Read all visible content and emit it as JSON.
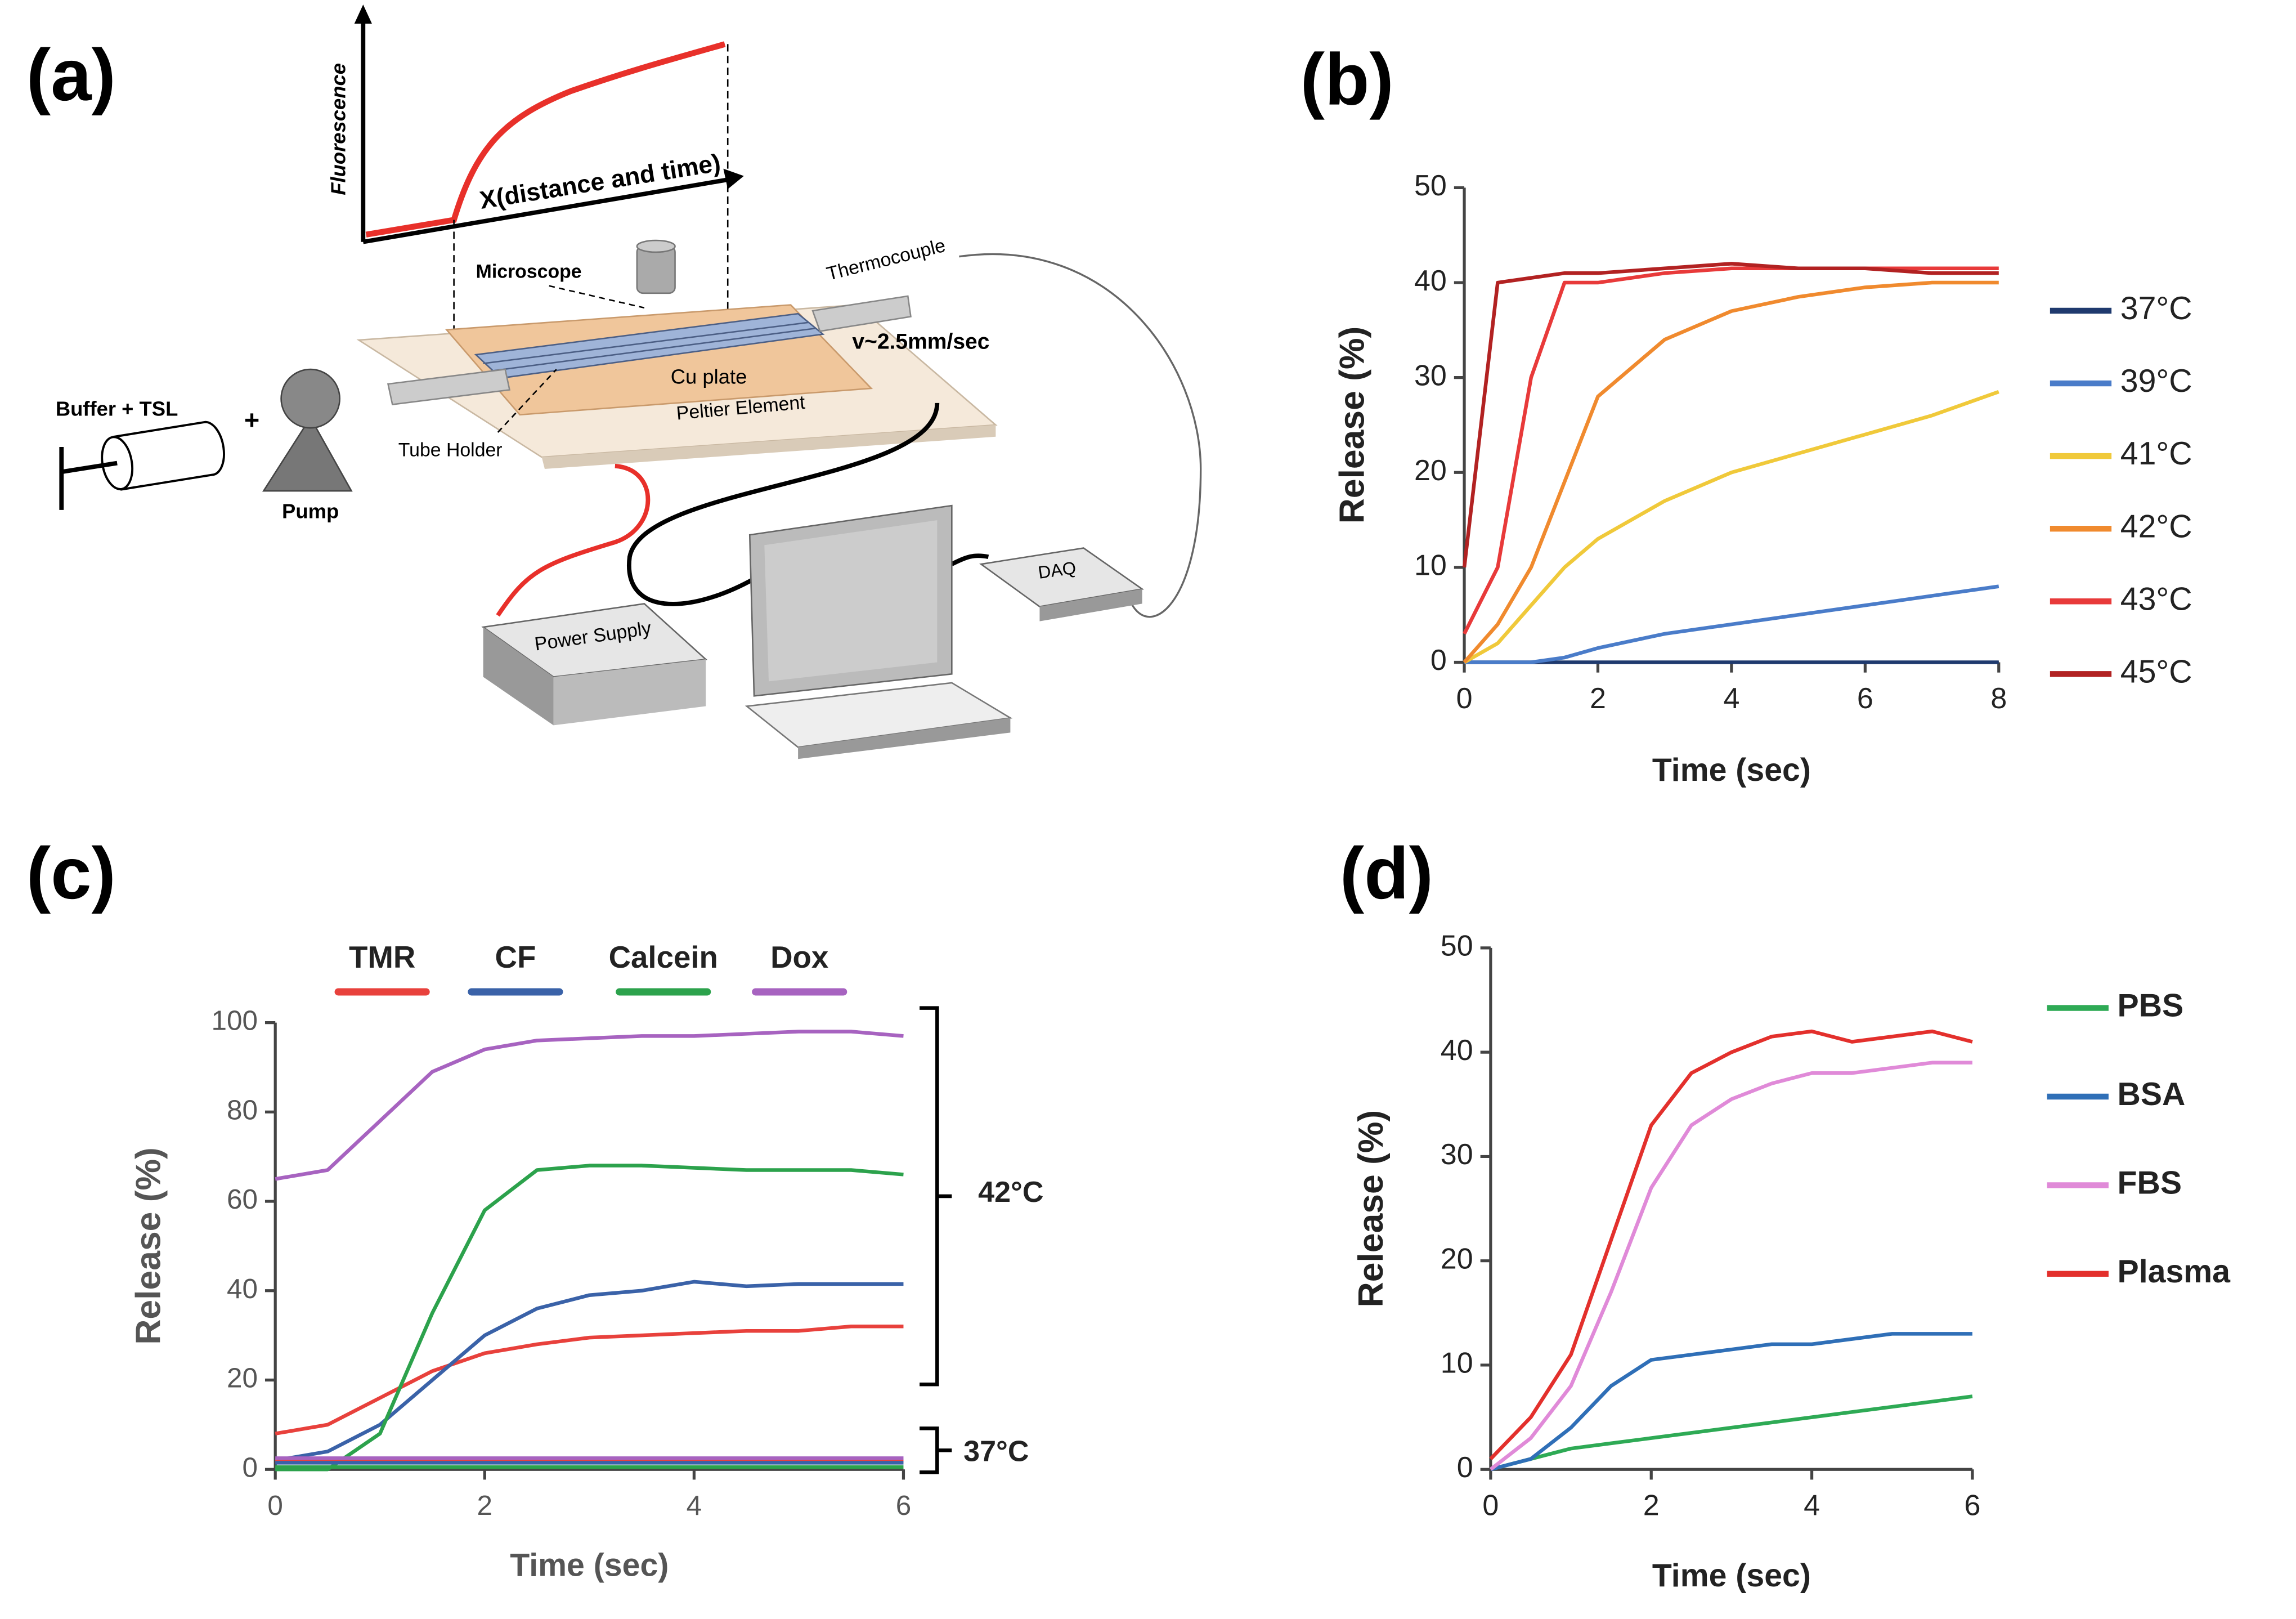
{
  "diagram": {
    "label": "(a)",
    "y_axis_label": "Fluorescence",
    "x_axis_label": "X(distance and time)",
    "microscope": "Microscope",
    "thermocouple": "Thermocouple",
    "velocity": "v~2.5mm/sec",
    "cu_plate": "Cu plate",
    "peltier": "Peltier Element",
    "tube_holder": "Tube Holder",
    "buffer": "Buffer + TSL",
    "plus": "+",
    "pump": "Pump",
    "power_supply": "Power Supply",
    "daq": "DAQ"
  },
  "chart_data": [
    {
      "type": "line",
      "label": "(b)",
      "x_label": "Time (sec)",
      "y_label": "Release (%)",
      "xlim": [
        0,
        8
      ],
      "ylim": [
        0,
        50
      ],
      "xticks": [
        0,
        2,
        4,
        6,
        8
      ],
      "yticks": [
        0,
        10,
        20,
        30,
        40,
        50
      ],
      "legend": "right",
      "x": [
        0,
        0.5,
        1,
        1.5,
        2,
        3,
        4,
        5,
        6,
        7,
        8
      ],
      "series": [
        {
          "name": "37°C",
          "color": "#1f3a6e",
          "values": [
            0,
            0,
            0,
            0,
            0,
            0,
            0,
            0,
            0,
            0,
            0
          ]
        },
        {
          "name": "39°C",
          "color": "#4a7cc9",
          "values": [
            0,
            0,
            0,
            0.5,
            1.5,
            3,
            4,
            5,
            6,
            7,
            8
          ]
        },
        {
          "name": "41°C",
          "color": "#f0c93a",
          "values": [
            0,
            2,
            6,
            10,
            13,
            17,
            20,
            22,
            24,
            26,
            28.5
          ]
        },
        {
          "name": "42°C",
          "color": "#f08a2e",
          "values": [
            0,
            4,
            10,
            19,
            28,
            34,
            37,
            38.5,
            39.5,
            40,
            40
          ]
        },
        {
          "name": "43°C",
          "color": "#e83a3a",
          "values": [
            3,
            10,
            30,
            40,
            40,
            41,
            41.5,
            41.5,
            41.5,
            41.5,
            41.5
          ]
        },
        {
          "name": "45°C",
          "color": "#b22222",
          "values": [
            10,
            40,
            40.5,
            41,
            41,
            41.5,
            42,
            41.5,
            41.5,
            41,
            41
          ]
        }
      ]
    },
    {
      "type": "line",
      "label": "(c)",
      "x_label": "Time (sec)",
      "y_label": "Release (%)",
      "xlim": [
        0,
        6
      ],
      "ylim": [
        0,
        100
      ],
      "xticks": [
        0,
        2,
        4,
        6
      ],
      "yticks": [
        0,
        20,
        40,
        60,
        80,
        100
      ],
      "legend": "top",
      "annotations": [
        "42°C",
        "37°C"
      ],
      "x": [
        0,
        0.5,
        1,
        1.5,
        2,
        2.5,
        3,
        3.5,
        4,
        4.5,
        5,
        5.5,
        6
      ],
      "series": [
        {
          "name": "TMR",
          "color": "#e8413c",
          "values": [
            8,
            10,
            16,
            22,
            26,
            28,
            29.5,
            30,
            30.5,
            31,
            31,
            32,
            32
          ]
        },
        {
          "name": "CF",
          "color": "#3a62a8",
          "values": [
            2,
            4,
            10,
            20,
            30,
            36,
            39,
            40,
            42,
            41,
            41.5,
            41.5,
            41.5
          ]
        },
        {
          "name": "Calcein",
          "color": "#2ca24c",
          "values": [
            0,
            0,
            8,
            35,
            58,
            67,
            68,
            68,
            67.5,
            67,
            67,
            67,
            66
          ]
        },
        {
          "name": "Dox",
          "color": "#a763c0",
          "values": [
            65,
            67,
            78,
            89,
            94,
            96,
            96.5,
            97,
            97,
            97.5,
            98,
            98,
            97
          ]
        },
        {
          "color": "#e8413c",
          "values": [
            2,
            2,
            2,
            2,
            2,
            2,
            2,
            2,
            2,
            2,
            2,
            2,
            2
          ]
        },
        {
          "color": "#3a62a8",
          "values": [
            1.5,
            1.5,
            1.5,
            1.5,
            1.5,
            1.5,
            1.5,
            1.5,
            1.5,
            1.5,
            1.5,
            1.5,
            1.5
          ]
        },
        {
          "color": "#2ca24c",
          "values": [
            0.5,
            0.5,
            0.5,
            0.5,
            0.5,
            0.5,
            0.5,
            0.5,
            0.5,
            0.5,
            0.5,
            0.5,
            0.5
          ]
        },
        {
          "color": "#a763c0",
          "values": [
            2.5,
            2.5,
            2.5,
            2.5,
            2.5,
            2.5,
            2.5,
            2.5,
            2.5,
            2.5,
            2.5,
            2.5,
            2.5
          ]
        }
      ]
    },
    {
      "type": "line",
      "label": "(d)",
      "x_label": "Time (sec)",
      "y_label": "Release (%)",
      "xlim": [
        0,
        6
      ],
      "ylim": [
        0,
        50
      ],
      "xticks": [
        0,
        2,
        4,
        6
      ],
      "yticks": [
        0,
        10,
        20,
        30,
        40,
        50
      ],
      "legend": "right",
      "x": [
        0,
        0.5,
        1,
        1.5,
        2,
        2.5,
        3,
        3.5,
        4,
        4.5,
        5,
        5.5,
        6
      ],
      "series": [
        {
          "name": "PBS",
          "color": "#2eaa55",
          "values": [
            0,
            1,
            2,
            2.5,
            3,
            3.5,
            4,
            4.5,
            5,
            5.5,
            6,
            6.5,
            7
          ]
        },
        {
          "name": "BSA",
          "color": "#2f6fb7",
          "values": [
            0,
            1,
            4,
            8,
            10.5,
            11,
            11.5,
            12,
            12,
            12.5,
            13,
            13,
            13
          ]
        },
        {
          "name": "FBS",
          "color": "#e08ad8",
          "values": [
            0,
            3,
            8,
            17,
            27,
            33,
            35.5,
            37,
            38,
            38,
            38.5,
            39,
            39
          ]
        },
        {
          "name": "Plasma",
          "color": "#e3302c",
          "values": [
            1,
            5,
            11,
            22,
            33,
            38,
            40,
            41.5,
            42,
            41,
            41.5,
            42,
            41
          ]
        }
      ]
    }
  ]
}
